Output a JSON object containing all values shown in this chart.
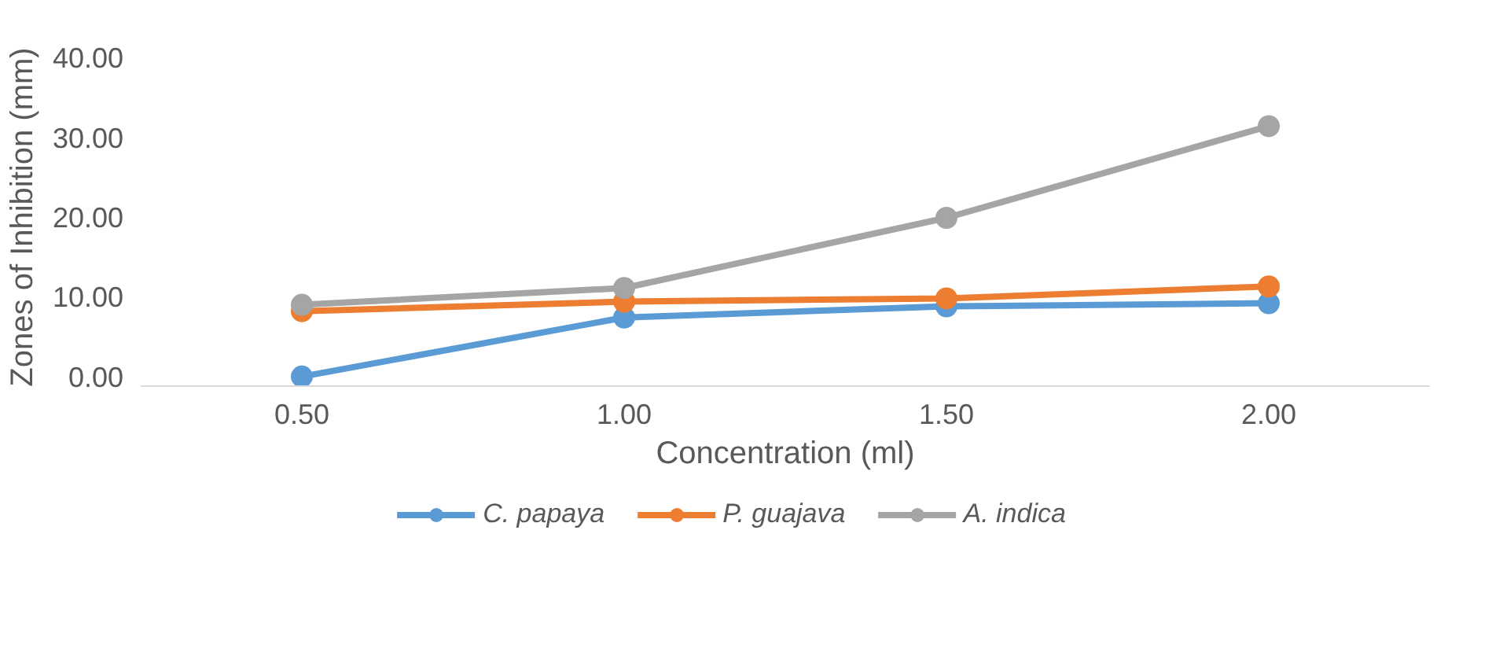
{
  "chart_data": {
    "type": "line",
    "xlabel": "Concentration (ml)",
    "ylabel": "Zones of Inhibition (mm)",
    "categories": [
      "0.50",
      "1.00",
      "1.50",
      "2.00"
    ],
    "series": [
      {
        "name": "C. papaya",
        "color": "#5b9bd5",
        "values": [
          0.0,
          7.4,
          8.8,
          9.2
        ]
      },
      {
        "name": "P. guajava",
        "color": "#ed7d31",
        "values": [
          8.2,
          9.4,
          9.8,
          11.3
        ]
      },
      {
        "name": "A. indica",
        "color": "#a5a5a5",
        "values": [
          9.0,
          11.1,
          19.9,
          31.4
        ]
      }
    ],
    "ylim": [
      0,
      40
    ],
    "yticks": [
      {
        "value": 0,
        "label": "0.00"
      },
      {
        "value": 10,
        "label": "10.00"
      },
      {
        "value": 20,
        "label": "20.00"
      },
      {
        "value": 30,
        "label": "30.00"
      },
      {
        "value": 40,
        "label": "40.00"
      }
    ],
    "grid": false,
    "legend": "bottom",
    "marker": "circle",
    "line_style": "solid"
  }
}
